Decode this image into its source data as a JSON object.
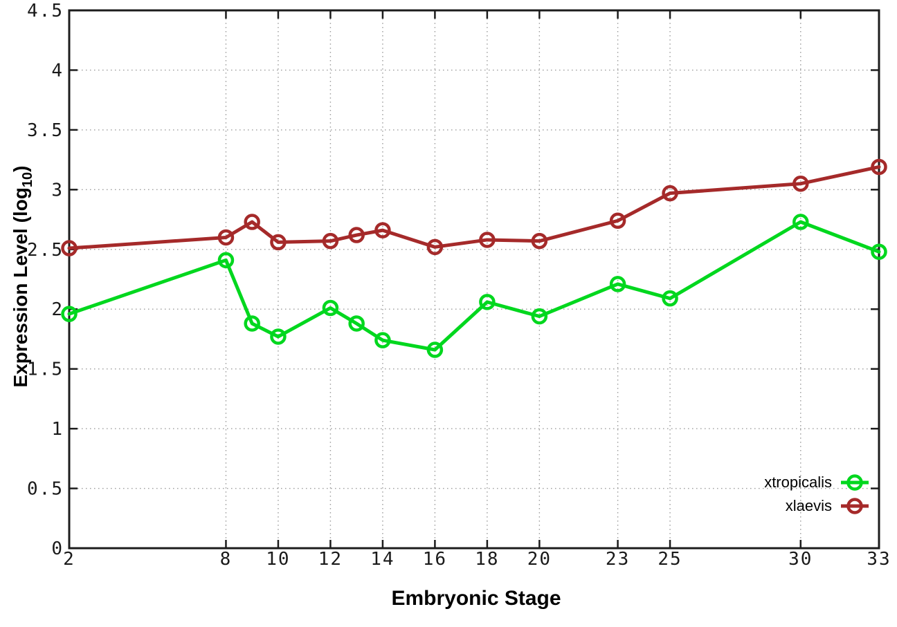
{
  "figure": {
    "background": "#ffffff",
    "xlabel": "Embryonic Stage",
    "ylabel_prefix": "Expression Level (log",
    "ylabel_sub": "10",
    "ylabel_suffix": ")",
    "axis_color": "#1c1c1c",
    "grid_color": "#9a9a9a",
    "tick_label_color": "#1a1a1a"
  },
  "chart_data": {
    "type": "line",
    "title": "",
    "xlabel": "Embryonic Stage",
    "ylabel": "Expression Level (log10)",
    "x": [
      2,
      8,
      9,
      10,
      12,
      13,
      14,
      16,
      18,
      20,
      23,
      25,
      30,
      33
    ],
    "series": [
      {
        "name": "xtropicalis",
        "color": "#00d71e",
        "values": [
          1.96,
          2.41,
          1.88,
          1.77,
          2.01,
          1.88,
          1.74,
          1.66,
          2.06,
          1.94,
          2.21,
          2.09,
          2.73,
          2.48
        ]
      },
      {
        "name": "xlaevis",
        "color": "#a52a2a",
        "values": [
          2.51,
          2.6,
          2.73,
          2.56,
          2.57,
          2.62,
          2.66,
          2.52,
          2.58,
          2.57,
          2.74,
          2.97,
          3.05,
          3.19
        ]
      }
    ],
    "xlim": [
      2,
      33
    ],
    "ylim": [
      0,
      4.5
    ],
    "xticks": [
      2,
      8,
      10,
      12,
      14,
      16,
      18,
      20,
      23,
      25,
      30,
      33
    ],
    "yticks": [
      0,
      0.5,
      1,
      1.5,
      2,
      2.5,
      3,
      3.5,
      4,
      4.5
    ],
    "grid": true,
    "marker": "open-circle",
    "legend_position": "bottom-right"
  }
}
